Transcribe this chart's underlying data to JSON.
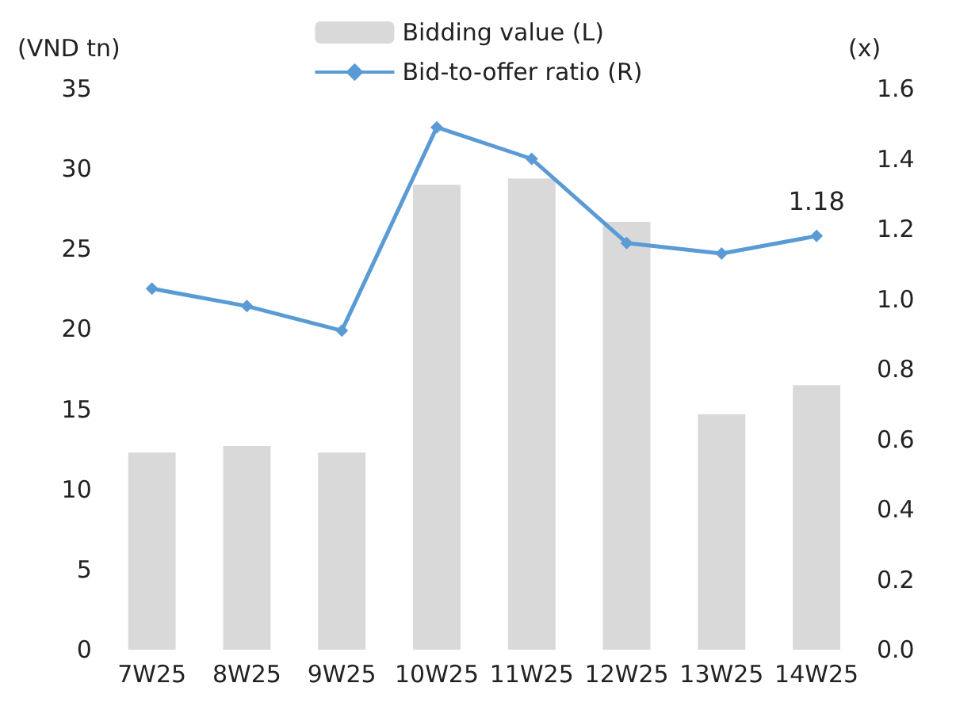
{
  "chart_data": {
    "type": "bar",
    "categories": [
      "7W25",
      "8W25",
      "9W25",
      "10W25",
      "11W25",
      "12W25",
      "13W25",
      "14W25"
    ],
    "series": [
      {
        "name": "Bidding value (L)",
        "color": "#d9d9d9",
        "values": [
          12.3,
          12.7,
          12.3,
          29.0,
          29.4,
          26.7,
          14.7,
          16.5
        ]
      },
      {
        "name": "Bid-to-offer ratio (R)",
        "type": "line",
        "axis": "y2",
        "color": "#5b9bd5",
        "marker": "diamond",
        "values": [
          1.03,
          0.98,
          0.91,
          1.49,
          1.4,
          1.16,
          1.13,
          1.18
        ],
        "value_labels": [
          null,
          null,
          null,
          null,
          null,
          null,
          null,
          "1.18"
        ]
      }
    ],
    "ylabel": "(VND tn)",
    "y2label": "(x)",
    "ylim": [
      0,
      35
    ],
    "yticks": [
      0,
      5,
      10,
      15,
      20,
      25,
      30,
      35
    ],
    "y2lim": [
      0,
      1.6
    ],
    "y2ticks": [
      {
        "value": 0,
        "label": "0.0"
      },
      0.2,
      0.4,
      0.6,
      0.8,
      {
        "value": 1,
        "label": "1.0"
      },
      1.2,
      1.4,
      1.6
    ],
    "grid": false,
    "legend": "top"
  }
}
